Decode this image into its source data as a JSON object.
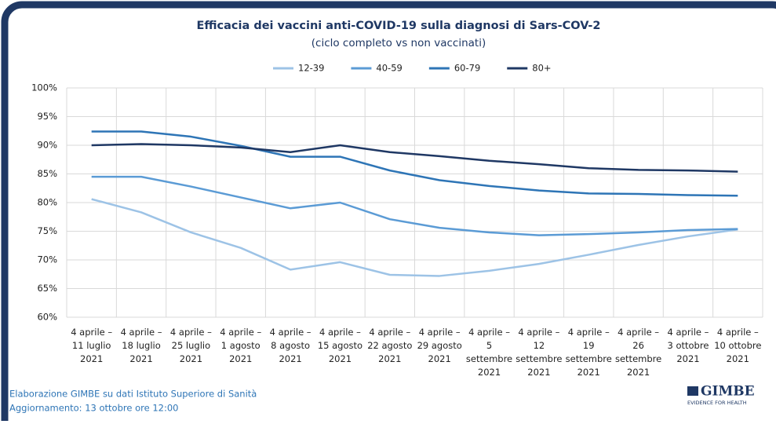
{
  "chart_data": {
    "type": "line",
    "title": "Efficacia dei vaccini anti-COVID-19 sulla diagnosi di Sars-COV-2",
    "subtitle": "(ciclo completo vs non vaccinati)",
    "categories": [
      [
        "4 aprile –",
        "11 luglio",
        "2021"
      ],
      [
        "4 aprile –",
        "18 luglio",
        "2021"
      ],
      [
        "4 aprile –",
        "25 luglio",
        "2021"
      ],
      [
        "4 aprile –",
        "1 agosto",
        "2021"
      ],
      [
        "4 aprile –",
        "8 agosto",
        "2021"
      ],
      [
        "4 aprile –",
        "15 agosto",
        "2021"
      ],
      [
        "4 aprile –",
        "22 agosto",
        "2021"
      ],
      [
        "4 aprile –",
        "29 agosto",
        "2021"
      ],
      [
        "4 aprile –",
        "5",
        "settembre",
        "2021"
      ],
      [
        "4 aprile –",
        "12",
        "settembre",
        "2021"
      ],
      [
        "4 aprile –",
        "19",
        "settembre",
        "2021"
      ],
      [
        "4 aprile –",
        "26",
        "settembre",
        "2021"
      ],
      [
        "4 aprile –",
        "3 ottobre",
        "2021"
      ],
      [
        "4 aprile –",
        "10 ottobre",
        "2021"
      ]
    ],
    "series": [
      {
        "name": "12-39",
        "color": "#9dc3e6",
        "values": [
          80.6,
          78.3,
          74.8,
          72.1,
          68.3,
          69.6,
          67.4,
          67.2,
          68.1,
          69.3,
          70.9,
          72.6,
          74.1,
          75.3
        ]
      },
      {
        "name": "40-59",
        "color": "#5b9bd5",
        "values": [
          84.5,
          84.5,
          82.8,
          80.9,
          79.0,
          80.0,
          77.1,
          75.6,
          74.8,
          74.3,
          74.5,
          74.8,
          75.2,
          75.4
        ]
      },
      {
        "name": "60-79",
        "color": "#2e75b6",
        "values": [
          92.4,
          92.4,
          91.5,
          89.9,
          88.0,
          88.0,
          85.6,
          83.9,
          82.9,
          82.1,
          81.6,
          81.5,
          81.3,
          81.2
        ]
      },
      {
        "name": "80+",
        "color": "#1f3864",
        "values": [
          90.0,
          90.2,
          90.0,
          89.6,
          88.8,
          90.0,
          88.8,
          88.1,
          87.3,
          86.7,
          86.0,
          85.7,
          85.6,
          85.4
        ]
      }
    ],
    "ylim": [
      60,
      100
    ],
    "yticks": [
      {
        "value": 60,
        "label": "60%"
      },
      {
        "value": 65,
        "label": "65%"
      },
      {
        "value": 70,
        "label": "70%"
      },
      {
        "value": 75,
        "label": "75%"
      },
      {
        "value": 80,
        "label": "80%"
      },
      {
        "value": 85,
        "label": "85%"
      },
      {
        "value": 90,
        "label": "90%"
      },
      {
        "value": 95,
        "label": "95%"
      },
      {
        "value": 100,
        "label": "100%"
      }
    ],
    "grid": true,
    "legend": "top"
  },
  "footer": {
    "source": "Elaborazione GIMBE su dati Istituto Superiore di Sanità",
    "update": "Aggiornamento: 13 ottobre ore 12:00"
  },
  "logo": {
    "name": "GIMBE",
    "tagline": "EVIDENCE FOR HEALTH"
  }
}
